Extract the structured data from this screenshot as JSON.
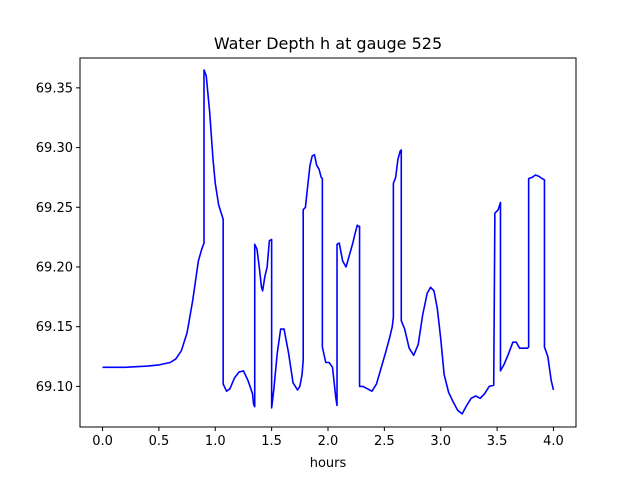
{
  "chart_data": {
    "type": "line",
    "title": "Water Depth h at gauge 525",
    "xlabel": "hours",
    "ylabel": "",
    "xlim": [
      -0.2,
      4.2
    ],
    "ylim": [
      69.066,
      69.375
    ],
    "xticks": [
      0.0,
      0.5,
      1.0,
      1.5,
      2.0,
      2.5,
      3.0,
      3.5,
      4.0
    ],
    "xtick_labels": [
      "0.0",
      "0.5",
      "1.0",
      "1.5",
      "2.0",
      "2.5",
      "3.0",
      "3.5",
      "4.0"
    ],
    "yticks": [
      69.1,
      69.15,
      69.2,
      69.25,
      69.3,
      69.35
    ],
    "ytick_labels": [
      "69.10",
      "69.15",
      "69.20",
      "69.25",
      "69.30",
      "69.35"
    ],
    "grid": false,
    "series": [
      {
        "color": "#0000ff",
        "x": [
          0.0,
          0.2,
          0.4,
          0.5,
          0.6,
          0.65,
          0.7,
          0.75,
          0.8,
          0.85,
          0.88,
          0.9,
          0.9,
          0.92,
          0.95,
          0.98,
          1.0,
          1.03,
          1.07,
          1.07,
          1.1,
          1.13,
          1.17,
          1.21,
          1.25,
          1.29,
          1.33,
          1.34,
          1.35,
          1.35,
          1.37,
          1.39,
          1.41,
          1.42,
          1.44,
          1.46,
          1.48,
          1.5,
          1.5,
          1.52,
          1.55,
          1.58,
          1.61,
          1.65,
          1.69,
          1.73,
          1.75,
          1.77,
          1.78,
          1.78,
          1.8,
          1.82,
          1.84,
          1.86,
          1.88,
          1.9,
          1.92,
          1.94,
          1.95,
          1.95,
          1.98,
          2.01,
          2.04,
          2.07,
          2.08,
          2.08,
          2.1,
          2.13,
          2.16,
          2.19,
          2.22,
          2.24,
          2.26,
          2.27,
          2.28,
          2.28,
          2.31,
          2.35,
          2.39,
          2.43,
          2.47,
          2.51,
          2.55,
          2.57,
          2.58,
          2.58,
          2.6,
          2.62,
          2.64,
          2.65,
          2.65,
          2.68,
          2.72,
          2.76,
          2.8,
          2.84,
          2.88,
          2.91,
          2.94,
          2.97,
          3.0,
          3.03,
          3.07,
          3.11,
          3.15,
          3.19,
          3.23,
          3.27,
          3.31,
          3.35,
          3.39,
          3.43,
          3.47,
          3.48,
          3.48,
          3.51,
          3.53,
          3.53,
          3.56,
          3.6,
          3.64,
          3.67,
          3.7,
          3.74,
          3.77,
          3.78,
          3.78,
          3.81,
          3.84,
          3.87,
          3.9,
          3.92,
          3.92,
          3.95,
          3.98,
          4.0
        ],
        "y": [
          69.116,
          69.116,
          69.117,
          69.118,
          69.12,
          69.123,
          69.13,
          69.145,
          69.172,
          69.205,
          69.215,
          69.22,
          69.365,
          69.36,
          69.33,
          69.29,
          69.27,
          69.252,
          69.24,
          69.102,
          69.096,
          69.098,
          69.107,
          69.112,
          69.113,
          69.105,
          69.094,
          69.085,
          69.083,
          69.219,
          69.215,
          69.2,
          69.183,
          69.18,
          69.192,
          69.2,
          69.222,
          69.223,
          69.082,
          69.098,
          69.128,
          69.148,
          69.148,
          69.128,
          69.103,
          69.097,
          69.1,
          69.11,
          69.122,
          69.248,
          69.25,
          69.268,
          69.285,
          69.293,
          69.294,
          69.285,
          69.282,
          69.275,
          69.274,
          69.133,
          69.12,
          69.12,
          69.116,
          69.09,
          69.084,
          69.219,
          69.22,
          69.205,
          69.2,
          69.21,
          69.22,
          69.228,
          69.235,
          69.234,
          69.234,
          69.1,
          69.1,
          69.098,
          69.096,
          69.102,
          69.115,
          69.128,
          69.142,
          69.15,
          69.158,
          69.27,
          69.275,
          69.29,
          69.297,
          69.298,
          69.155,
          69.148,
          69.132,
          69.126,
          69.135,
          69.16,
          69.178,
          69.183,
          69.18,
          69.165,
          69.14,
          69.11,
          69.095,
          69.087,
          69.08,
          69.077,
          69.084,
          69.09,
          69.092,
          69.09,
          69.094,
          69.1,
          69.101,
          69.24,
          69.245,
          69.248,
          69.254,
          69.113,
          69.118,
          69.127,
          69.137,
          69.137,
          69.132,
          69.132,
          69.132,
          69.133,
          69.274,
          69.275,
          69.277,
          69.276,
          69.274,
          69.273,
          69.133,
          69.125,
          69.105,
          69.097
        ]
      }
    ]
  }
}
